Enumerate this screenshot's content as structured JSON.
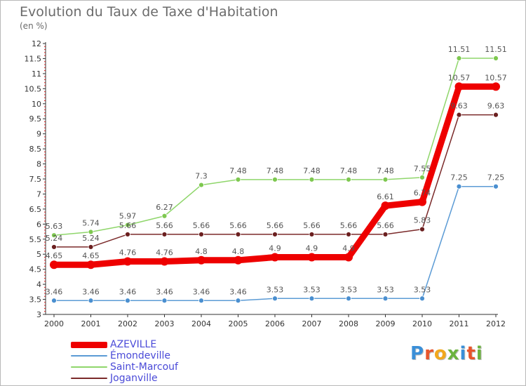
{
  "header": {
    "title": "Evolution du Taux de Taxe d'Habitation",
    "subtitle": "(en %)"
  },
  "logo": {
    "text": "Proxiti",
    "letter_colors": [
      "#3a8fd8",
      "#e8552b",
      "#f2a81d",
      "#6cb33f",
      "#3a8fd8",
      "#e8552b",
      "#6cb33f"
    ]
  },
  "chart_data": {
    "type": "line",
    "title": "Evolution du Taux de Taxe d'Habitation",
    "ylabel": "(en %)",
    "xlabel": "",
    "x": [
      "2000",
      "2001",
      "2002",
      "2003",
      "2004",
      "2005",
      "2006",
      "2007",
      "2008",
      "2009",
      "2010",
      "2011",
      "2012"
    ],
    "ylim": [
      3,
      12
    ],
    "yticks": [
      "3",
      "3.5",
      "4",
      "4.5",
      "5",
      "5.5",
      "6",
      "6.5",
      "7",
      "7.5",
      "8",
      "8.5",
      "9",
      "9.5",
      "10",
      "10.5",
      "11",
      "11.5",
      "12"
    ],
    "grid": false,
    "legend_position": "bottom-left",
    "series": [
      {
        "name": "AZEVILLE",
        "color": "#ee0000",
        "values": [
          4.65,
          4.65,
          4.76,
          4.76,
          4.8,
          4.8,
          4.9,
          4.9,
          4.9,
          6.61,
          6.74,
          10.57,
          10.57
        ],
        "labels": [
          "4.65",
          "4.65",
          "4.76",
          "4.76",
          "4.8",
          "4.8",
          "4.9",
          "4.9",
          "4.9",
          "6.61",
          "6.74",
          "10.57",
          "10.57"
        ]
      },
      {
        "name": "Émondeville",
        "color": "#5b9bd5",
        "values": [
          3.46,
          3.46,
          3.46,
          3.46,
          3.46,
          3.46,
          3.53,
          3.53,
          3.53,
          3.53,
          3.53,
          7.25,
          7.25
        ],
        "labels": [
          "3.46",
          "3.46",
          "3.46",
          "3.46",
          "3.46",
          "3.46",
          "3.53",
          "3.53",
          "3.53",
          "3.53",
          "3.53",
          "7.25",
          "7.25"
        ]
      },
      {
        "name": "Saint-Marcouf",
        "color": "#8fd66b",
        "values": [
          5.63,
          5.74,
          5.97,
          6.27,
          7.3,
          7.48,
          7.48,
          7.48,
          7.48,
          7.48,
          7.55,
          11.51,
          11.51
        ],
        "labels": [
          "5.63",
          "5.74",
          "5.97",
          "6.27",
          "7.3",
          "7.48",
          "7.48",
          "7.48",
          "7.48",
          "7.48",
          "7.55",
          "11.51",
          "11.51"
        ]
      },
      {
        "name": "Joganville",
        "color": "#7b2a2a",
        "values": [
          5.24,
          5.24,
          5.66,
          5.66,
          5.66,
          5.66,
          5.66,
          5.66,
          5.66,
          5.66,
          5.83,
          9.63,
          9.63
        ],
        "labels": [
          "5.24",
          "5.24",
          "5.66",
          "5.66",
          "5.66",
          "5.66",
          "5.66",
          "5.66",
          "5.66",
          "5.66",
          "5.83",
          "9.63",
          "9.63"
        ]
      }
    ]
  }
}
